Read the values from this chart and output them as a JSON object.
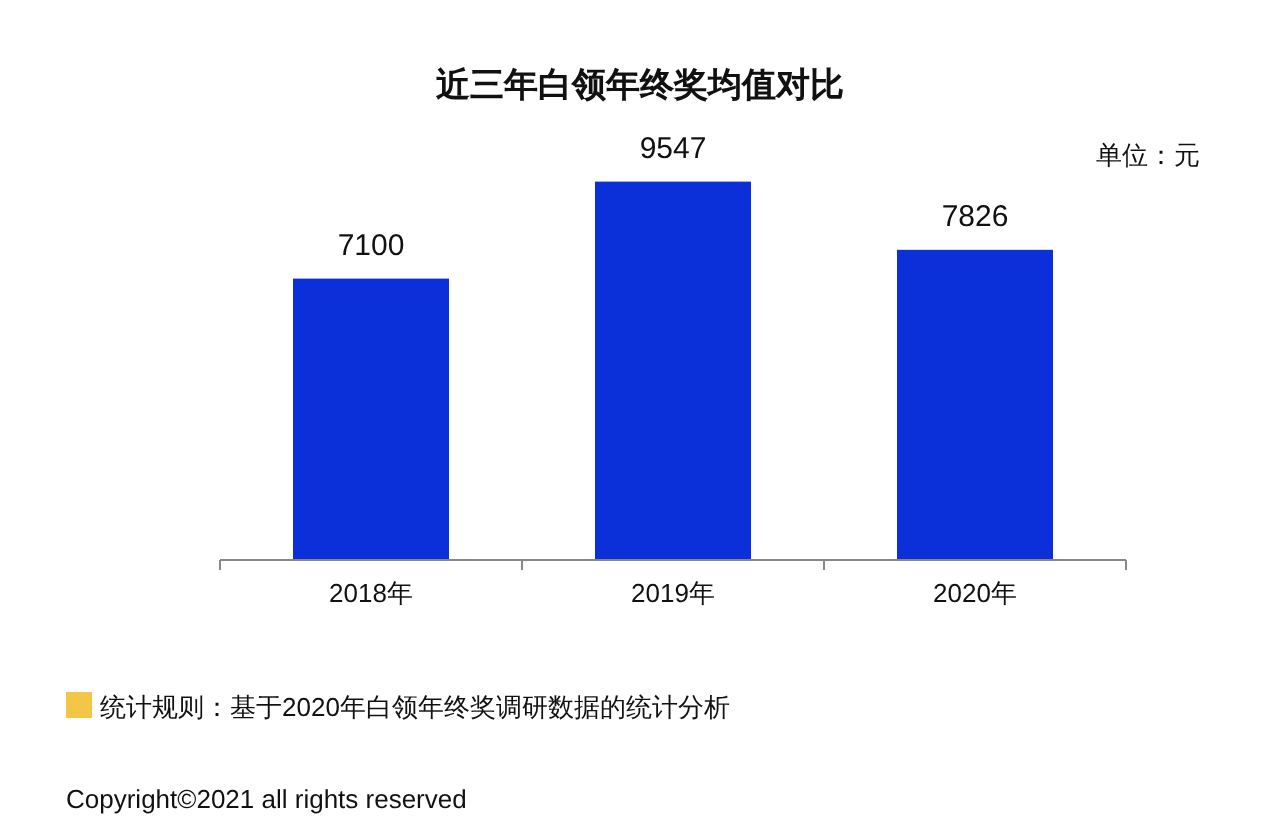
{
  "chart_data": {
    "type": "bar",
    "title": "近三年白领年终奖均值对比",
    "categories": [
      "2018年",
      "2019年",
      "2020年"
    ],
    "values": [
      7100,
      9547,
      7826
    ],
    "color": "#0b2fd8",
    "data_labels": true,
    "annotations": [
      "单位：元",
      "统计规则：基于2020年白领年终奖调研数据的统计分析",
      "Copyright©2021 all rights reserved"
    ]
  }
}
